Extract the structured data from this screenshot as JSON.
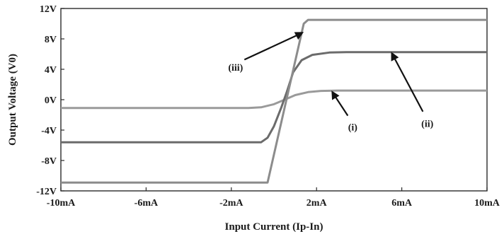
{
  "chart_data": {
    "type": "line",
    "title": "",
    "xlabel": "Input Current (Ip-In)",
    "ylabel": "Output Voltage (V0)",
    "xlim": [
      -10,
      10
    ],
    "ylim": [
      -12,
      12
    ],
    "x_unit": "mA",
    "y_unit": "V",
    "x_ticks": [
      -10,
      -6,
      -2,
      2,
      6,
      10
    ],
    "x_tick_labels": [
      "-10mA",
      "-6mA",
      "-2mA",
      "2mA",
      "6mA",
      "10mA"
    ],
    "y_ticks": [
      12,
      8,
      4,
      0,
      -4,
      -8,
      -12
    ],
    "y_tick_labels": [
      "12V",
      "8V",
      "4V",
      "0V",
      "-4V",
      "-8V",
      "-12V"
    ],
    "grid": false,
    "legend": "none",
    "series": [
      {
        "label": "(i)",
        "color": "#9a9a9a",
        "points": [
          [
            -10,
            -1.1
          ],
          [
            -1.2,
            -1.1
          ],
          [
            -0.6,
            -1.0
          ],
          [
            0,
            -0.6
          ],
          [
            0.5,
            0
          ],
          [
            1.0,
            0.6
          ],
          [
            1.6,
            1.0
          ],
          [
            2.2,
            1.15
          ],
          [
            3,
            1.2
          ],
          [
            10,
            1.2
          ]
        ]
      },
      {
        "label": "(ii)",
        "color": "#6b6b6b",
        "points": [
          [
            -10,
            -5.6
          ],
          [
            -0.6,
            -5.6
          ],
          [
            -0.3,
            -5.0
          ],
          [
            0,
            -3.5
          ],
          [
            0.35,
            -1.0
          ],
          [
            0.6,
            1.0
          ],
          [
            0.9,
            3.6
          ],
          [
            1.3,
            5.2
          ],
          [
            1.8,
            5.9
          ],
          [
            2.6,
            6.2
          ],
          [
            3.4,
            6.25
          ],
          [
            10,
            6.25
          ]
        ]
      },
      {
        "label": "(iii)",
        "color": "#8c8c8c",
        "points": [
          [
            -10,
            -10.9
          ],
          [
            -0.3,
            -10.9
          ],
          [
            1.4,
            10.0
          ],
          [
            1.6,
            10.5
          ],
          [
            10,
            10.5
          ]
        ]
      }
    ],
    "annotations": [
      {
        "text": "(i)",
        "x": 3.7,
        "y": -3.6,
        "arrow_to": [
          2.7,
          1.2
        ]
      },
      {
        "text": "(ii)",
        "x": 7.2,
        "y": -3.1,
        "arrow_to": [
          5.5,
          6.3
        ]
      },
      {
        "text": "(iii)",
        "x": -1.8,
        "y": 4.3,
        "arrow_to": [
          1.4,
          8.9
        ]
      }
    ]
  }
}
